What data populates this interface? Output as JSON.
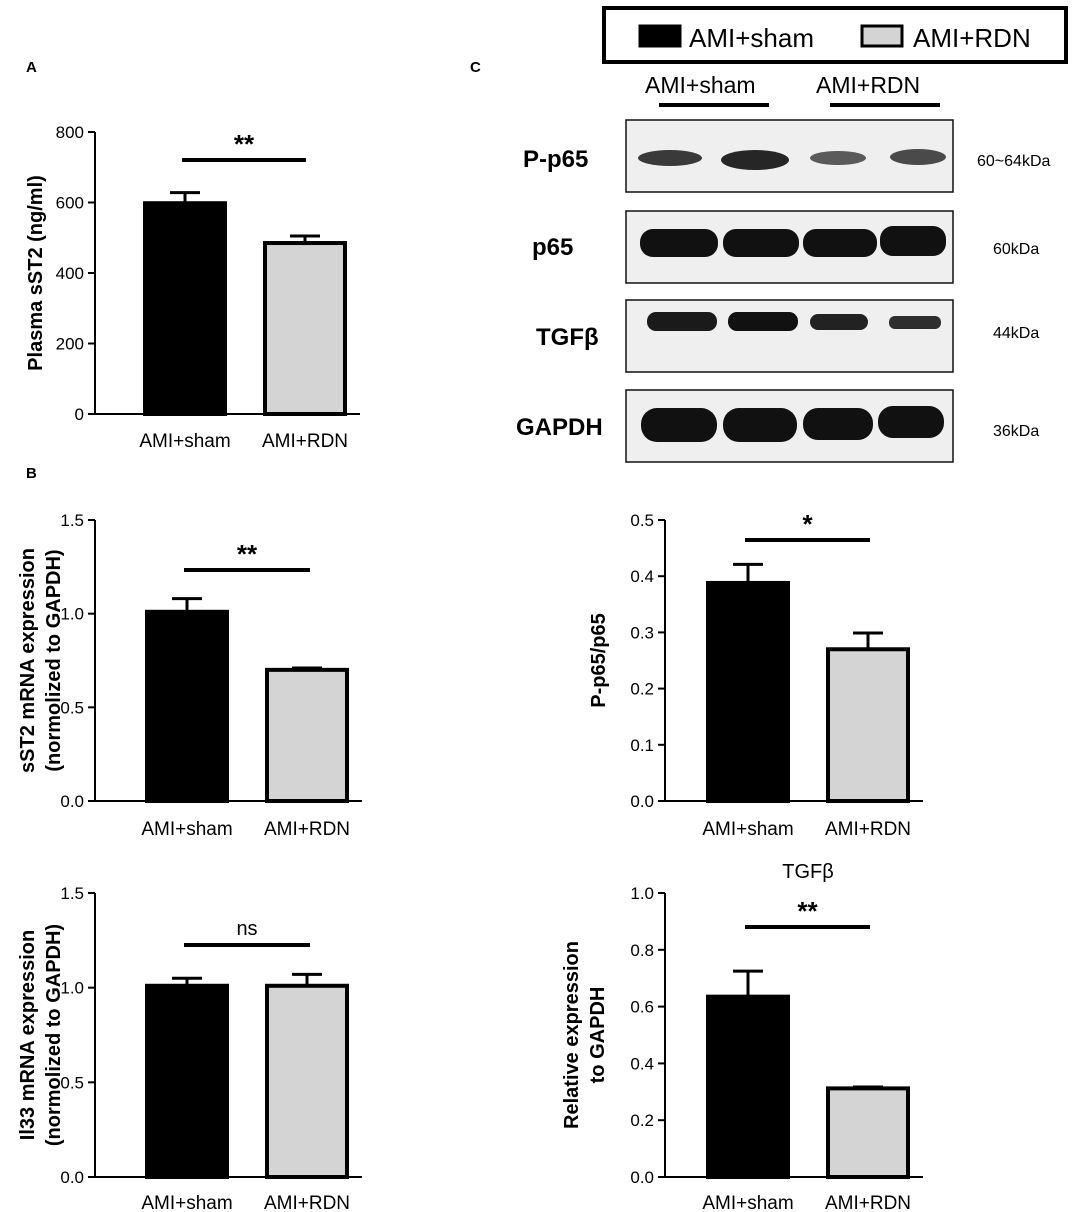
{
  "panel_letters": {
    "a": "A",
    "b": "B",
    "c": "C"
  },
  "legend": {
    "items": [
      {
        "label": "AMI+sham",
        "color": "#000000"
      },
      {
        "label": "AMI+RDN",
        "color": "#d4d4d4"
      }
    ]
  },
  "blot": {
    "group_labels": [
      "AMI+sham",
      "AMI+RDN"
    ],
    "rows": [
      {
        "label": "P-p65",
        "size": "60~64kDa"
      },
      {
        "label": "p65",
        "size": "60kDa"
      },
      {
        "label": "TGFβ",
        "size": "44kDa"
      },
      {
        "label": "GAPDH",
        "size": "36kDa"
      }
    ]
  },
  "colors": {
    "sham": "#000000",
    "rdn": "#d4d4d4",
    "axis": "#000000"
  },
  "chart_data": [
    {
      "id": "sst2-plasma",
      "type": "bar",
      "title": "",
      "ylabel": [
        "Plasma sST2 (ng/ml)"
      ],
      "categories": [
        "AMI+sham",
        "AMI+RDN"
      ],
      "values": [
        598,
        485
      ],
      "errors": [
        30,
        20
      ],
      "ylim": [
        0,
        800
      ],
      "yticks": [
        0,
        200,
        400,
        600,
        800
      ],
      "ytick_labels": [
        "0",
        "200",
        "400",
        "600",
        "800"
      ],
      "significance": "**"
    },
    {
      "id": "sst2-mrna",
      "type": "bar",
      "title": "",
      "ylabel": [
        "sST2 mRNA expression",
        "(normolized to GAPDH)"
      ],
      "categories": [
        "AMI+sham",
        "AMI+RDN"
      ],
      "values": [
        1.01,
        0.7
      ],
      "errors": [
        0.07,
        0.01
      ],
      "ylim": [
        0,
        1.5
      ],
      "yticks": [
        0,
        0.5,
        1.0,
        1.5
      ],
      "ytick_labels": [
        "0.0",
        "0.5",
        "1.0",
        "1.5"
      ],
      "significance": "**"
    },
    {
      "id": "il33-mrna",
      "type": "bar",
      "title": "",
      "ylabel": [
        "Il33 mRNA expression",
        "(normolized to GAPDH)"
      ],
      "categories": [
        "AMI+sham",
        "AMI+RDN"
      ],
      "values": [
        1.01,
        1.01
      ],
      "errors": [
        0.04,
        0.06
      ],
      "ylim": [
        0,
        1.5
      ],
      "yticks": [
        0,
        0.5,
        1.0,
        1.5
      ],
      "ytick_labels": [
        "0.0",
        "0.5",
        "1.0",
        "1.5"
      ],
      "significance": "ns"
    },
    {
      "id": "pp65-ratio",
      "type": "bar",
      "title": "",
      "ylabel": [
        "P-p65/p65"
      ],
      "categories": [
        "AMI+sham",
        "AMI+RDN"
      ],
      "values": [
        0.388,
        0.27
      ],
      "errors": [
        0.033,
        0.029
      ],
      "ylim": [
        0,
        0.5
      ],
      "yticks": [
        0,
        0.1,
        0.2,
        0.3,
        0.4,
        0.5
      ],
      "ytick_labels": [
        "0.0",
        "0.1",
        "0.2",
        "0.3",
        "0.4",
        "0.5"
      ],
      "significance": "*"
    },
    {
      "id": "tgfb-rel",
      "type": "bar",
      "title": "TGFβ",
      "ylabel": [
        "Relative expression",
        "to GAPDH"
      ],
      "categories": [
        "AMI+sham",
        "AMI+RDN"
      ],
      "values": [
        0.635,
        0.312
      ],
      "errors": [
        0.09,
        0.005
      ],
      "ylim": [
        0,
        1.0
      ],
      "yticks": [
        0,
        0.2,
        0.4,
        0.6,
        0.8,
        1.0
      ],
      "ytick_labels": [
        "0.0",
        "0.2",
        "0.4",
        "0.6",
        "0.8",
        "1.0"
      ],
      "significance": "**"
    }
  ]
}
